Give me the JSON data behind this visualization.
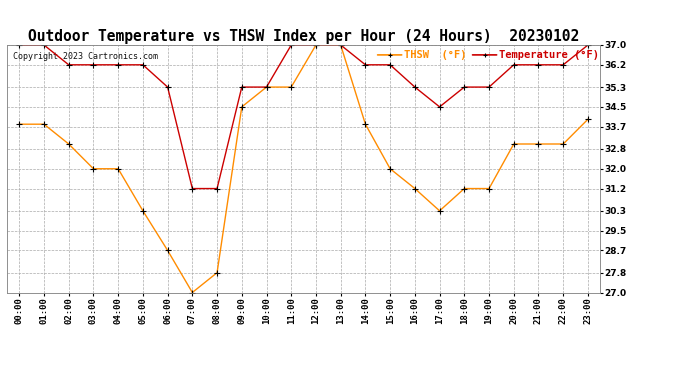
{
  "title": "Outdoor Temperature vs THSW Index per Hour (24 Hours)  20230102",
  "copyright_text": "Copyright 2023 Cartronics.com",
  "thsw_label": "THSW  (°F)",
  "temp_label": "Temperature (°F)",
  "hours": [
    "00:00",
    "01:00",
    "02:00",
    "03:00",
    "04:00",
    "05:00",
    "06:00",
    "07:00",
    "08:00",
    "09:00",
    "10:00",
    "11:00",
    "12:00",
    "13:00",
    "14:00",
    "15:00",
    "16:00",
    "17:00",
    "18:00",
    "19:00",
    "20:00",
    "21:00",
    "22:00",
    "23:00"
  ],
  "temperature": [
    37.0,
    37.0,
    36.2,
    36.2,
    36.2,
    36.2,
    35.3,
    31.2,
    31.2,
    35.3,
    35.3,
    37.0,
    37.0,
    37.0,
    36.2,
    36.2,
    35.3,
    34.5,
    35.3,
    35.3,
    36.2,
    36.2,
    36.2,
    37.0
  ],
  "thsw": [
    33.8,
    33.8,
    33.0,
    32.0,
    32.0,
    30.3,
    28.7,
    27.0,
    27.8,
    34.5,
    35.3,
    35.3,
    37.0,
    37.0,
    33.8,
    32.0,
    31.2,
    30.3,
    31.2,
    31.2,
    33.0,
    33.0,
    33.0,
    34.0
  ],
  "temp_color": "#cc0000",
  "thsw_color": "#ff8c00",
  "bg_color": "#ffffff",
  "grid_color": "#aaaaaa",
  "ylim": [
    27.0,
    37.0
  ],
  "yticks": [
    27.0,
    27.8,
    28.7,
    29.5,
    30.3,
    31.2,
    32.0,
    32.8,
    33.7,
    34.5,
    35.3,
    36.2,
    37.0
  ],
  "title_fontsize": 10.5,
  "tick_fontsize": 6.5,
  "legend_fontsize": 7.5,
  "copyright_fontsize": 6,
  "marker": "+",
  "marker_color": "#000000",
  "marker_size": 4,
  "line_width": 1.0
}
